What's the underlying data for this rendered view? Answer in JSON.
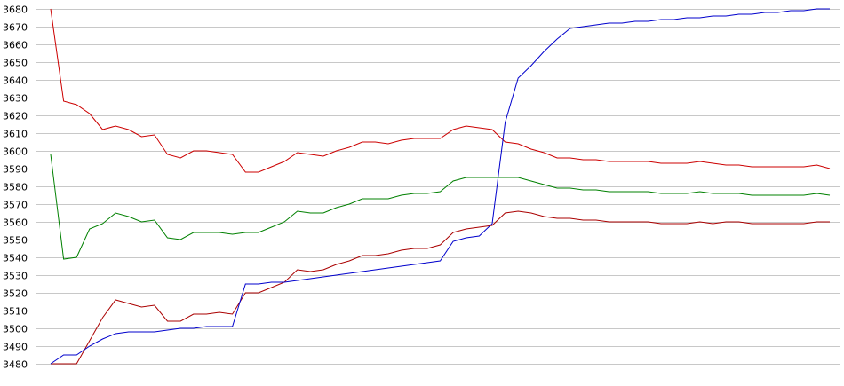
{
  "chart_data": {
    "type": "line",
    "title": "",
    "xlabel": "",
    "ylabel": "",
    "grid": true,
    "legend": "none",
    "ylim": [
      3480,
      3680
    ],
    "yticks": [
      3480,
      3490,
      3500,
      3510,
      3520,
      3530,
      3540,
      3550,
      3560,
      3570,
      3580,
      3590,
      3600,
      3610,
      3620,
      3630,
      3640,
      3650,
      3660,
      3670,
      3680
    ],
    "x": [
      0,
      1,
      2,
      3,
      4,
      5,
      6,
      7,
      8,
      9,
      10,
      11,
      12,
      13,
      14,
      15,
      16,
      17,
      18,
      19,
      20,
      21,
      22,
      23,
      24,
      25,
      26,
      27,
      28,
      29,
      30,
      31,
      32,
      33,
      34,
      35,
      36,
      37,
      38,
      39,
      40,
      41,
      42,
      43,
      44,
      45,
      46,
      47,
      48,
      49,
      50,
      51,
      52,
      53,
      54,
      55,
      56,
      57,
      58,
      59,
      60
    ],
    "series": [
      {
        "color": "#cc0000",
        "values": [
          3680,
          3628,
          3626,
          3621,
          3612,
          3614,
          3612,
          3608,
          3609,
          3598,
          3596,
          3600,
          3600,
          3599,
          3598,
          3588,
          3588,
          3591,
          3594,
          3599,
          3598,
          3597,
          3600,
          3602,
          3605,
          3605,
          3604,
          3606,
          3607,
          3607,
          3607,
          3612,
          3614,
          3613,
          3612,
          3605,
          3604,
          3601,
          3599,
          3596,
          3596,
          3595,
          3595,
          3594,
          3594,
          3594,
          3594,
          3593,
          3593,
          3593,
          3594,
          3593,
          3592,
          3592,
          3591,
          3591,
          3591,
          3591,
          3591,
          3592,
          3590
        ]
      },
      {
        "color": "#008000",
        "values": [
          3598,
          3539,
          3540,
          3556,
          3559,
          3565,
          3563,
          3560,
          3561,
          3551,
          3550,
          3554,
          3554,
          3554,
          3553,
          3554,
          3554,
          3557,
          3560,
          3566,
          3565,
          3565,
          3568,
          3570,
          3573,
          3573,
          3573,
          3575,
          3576,
          3576,
          3577,
          3583,
          3585,
          3585,
          3585,
          3585,
          3585,
          3583,
          3581,
          3579,
          3579,
          3578,
          3578,
          3577,
          3577,
          3577,
          3577,
          3576,
          3576,
          3576,
          3577,
          3576,
          3576,
          3576,
          3575,
          3575,
          3575,
          3575,
          3575,
          3576,
          3575
        ]
      },
      {
        "color": "#aa0000",
        "values": [
          3480,
          3480,
          3480,
          3493,
          3506,
          3516,
          3514,
          3512,
          3513,
          3504,
          3504,
          3508,
          3508,
          3509,
          3508,
          3520,
          3520,
          3523,
          3526,
          3533,
          3532,
          3533,
          3536,
          3538,
          3541,
          3541,
          3542,
          3544,
          3545,
          3545,
          3547,
          3554,
          3556,
          3557,
          3558,
          3565,
          3566,
          3565,
          3563,
          3562,
          3562,
          3561,
          3561,
          3560,
          3560,
          3560,
          3560,
          3559,
          3559,
          3559,
          3560,
          3559,
          3560,
          3560,
          3559,
          3559,
          3559,
          3559,
          3559,
          3560,
          3560
        ]
      },
      {
        "color": "#0000cc",
        "values": [
          3480,
          3485,
          3485,
          3490,
          3494,
          3497,
          3498,
          3498,
          3498,
          3499,
          3500,
          3500,
          3501,
          3501,
          3501,
          3525,
          3525,
          3526,
          3526,
          3527,
          3528,
          3529,
          3530,
          3531,
          3532,
          3533,
          3534,
          3535,
          3536,
          3537,
          3538,
          3549,
          3551,
          3552,
          3559,
          3616,
          3641,
          3648,
          3656,
          3663,
          3669,
          3670,
          3671,
          3672,
          3672,
          3673,
          3673,
          3674,
          3674,
          3675,
          3675,
          3676,
          3676,
          3677,
          3677,
          3678,
          3678,
          3679,
          3679,
          3680,
          3680
        ]
      }
    ]
  }
}
